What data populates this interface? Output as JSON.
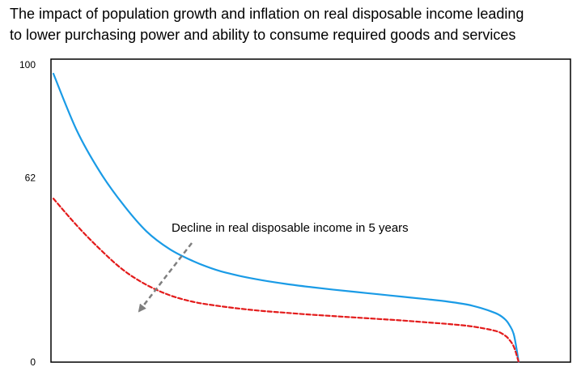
{
  "chart_data": {
    "type": "line",
    "title_line1": "The impact of population growth and inflation on real disposable income leading",
    "title_line2": "to lower purchasing power and ability to consume required goods and services",
    "xlabel": "",
    "ylabel": "",
    "ylim": [
      0,
      100
    ],
    "y_ticks": [
      "100",
      "62",
      "0"
    ],
    "y_tick_values": [
      100,
      62,
      0
    ],
    "grid": false,
    "legend": "none",
    "annotation": "Decline in real disposable income in 5 years",
    "x": [
      0,
      5,
      10,
      15,
      20,
      25,
      30,
      35,
      40,
      45,
      50,
      55,
      60,
      65,
      70,
      75,
      80,
      85,
      90,
      95,
      97,
      98,
      99,
      100
    ],
    "series": [
      {
        "color": "#1a9be6",
        "style": "solid",
        "values": [
          97,
          78,
          64,
          53,
          44,
          38,
          34,
          31,
          29,
          27.5,
          26.3,
          25.3,
          24.4,
          23.6,
          22.8,
          22,
          21.2,
          20.3,
          19,
          16.5,
          14.5,
          12.5,
          9,
          0
        ]
      },
      {
        "color": "#e31b1b",
        "style": "dashed",
        "values": [
          55,
          46,
          38,
          31,
          26,
          22.5,
          20.3,
          19,
          18,
          17.2,
          16.6,
          16,
          15.5,
          15,
          14.5,
          14,
          13.4,
          12.8,
          12,
          10.5,
          9,
          7.5,
          5,
          0
        ]
      }
    ]
  }
}
